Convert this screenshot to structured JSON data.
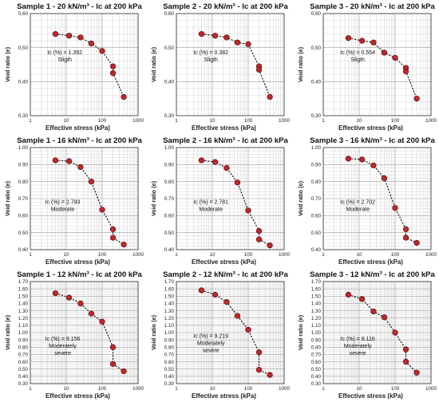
{
  "chart_data": [
    {
      "type": "scatter",
      "title": "Sample 1 - 20 kN/m³ - Ic at 200 kPa",
      "xlabel": "Effective stress (kPa)",
      "ylabel": "Void ratio (e)",
      "xscale": "log",
      "xlim": [
        1,
        1000
      ],
      "ylim": [
        0.3,
        0.6
      ],
      "yticks": [
        "0,30",
        "0,40",
        "0,50",
        "0,60"
      ],
      "xticks": [
        "1",
        "10",
        "100",
        "1000"
      ],
      "grid": true,
      "annotation": [
        "Ic (%) = 1.392",
        "Sligth"
      ],
      "x": [
        5,
        12,
        25,
        50,
        100,
        200,
        200,
        400
      ],
      "y": [
        0.54,
        0.535,
        0.53,
        0.512,
        0.49,
        0.445,
        0.425,
        0.355
      ]
    },
    {
      "type": "scatter",
      "title": "Sample 2 - 20 kN/m³ - Ic at 200 kPa",
      "xlabel": "Effective stress (kPa)",
      "ylabel": "Void ratio (e)",
      "xscale": "log",
      "xlim": [
        1,
        1000
      ],
      "ylim": [
        0.3,
        0.6
      ],
      "yticks": [
        "0,30",
        "0,40",
        "0,50",
        "0,60"
      ],
      "xticks": [
        "1",
        "10",
        "100",
        "1000"
      ],
      "grid": true,
      "annotation": [
        "Ic (%) = 0.382",
        "Sligth"
      ],
      "x": [
        5,
        12,
        25,
        50,
        100,
        200,
        200,
        400
      ],
      "y": [
        0.54,
        0.535,
        0.53,
        0.515,
        0.51,
        0.445,
        0.435,
        0.355
      ]
    },
    {
      "type": "scatter",
      "title": "Sample 3 - 20 kN/m³ - Ic at 200 kPa",
      "xlabel": "Effective stress (kPa)",
      "ylabel": "Void ratio (e)",
      "xscale": "log",
      "xlim": [
        1,
        1000
      ],
      "ylim": [
        0.3,
        0.6
      ],
      "yticks": [
        "0,30",
        "0,40",
        "0,50",
        "0,60"
      ],
      "xticks": [
        "1",
        "10",
        "100",
        "1000"
      ],
      "grid": true,
      "annotation": [
        "Ic (%) = 0.554",
        "Sligth"
      ],
      "x": [
        5,
        12,
        25,
        50,
        100,
        200,
        200,
        400
      ],
      "y": [
        0.528,
        0.52,
        0.515,
        0.485,
        0.47,
        0.44,
        0.43,
        0.35
      ]
    },
    {
      "type": "scatter",
      "title": "Sample 1 - 16 kN/m³ - Ic at 200 kPa",
      "xlabel": "Effective stress (kPa)",
      "ylabel": "Void ratio (e)",
      "xscale": "log",
      "xlim": [
        1,
        1000
      ],
      "ylim": [
        0.4,
        1.0
      ],
      "yticks": [
        "0.40",
        "0.50",
        "0.60",
        "0.70",
        "0.80",
        "0.90",
        "1.00"
      ],
      "xticks": [
        "1",
        "10",
        "100",
        "1000"
      ],
      "grid": true,
      "annotation": [
        "Ic (%) = 2.793",
        "Moderate"
      ],
      "x": [
        5,
        12,
        25,
        50,
        100,
        200,
        200,
        400
      ],
      "y": [
        0.925,
        0.92,
        0.885,
        0.8,
        0.635,
        0.52,
        0.47,
        0.43
      ]
    },
    {
      "type": "scatter",
      "title": "Sample 2 - 16 kN/m³ - Ic at 200 kPa",
      "xlabel": "Effective stress (kPa)",
      "ylabel": "Void ratio (e)",
      "xscale": "log",
      "xlim": [
        1,
        1000
      ],
      "ylim": [
        0.4,
        1.0
      ],
      "yticks": [
        "0.40",
        "0.50",
        "0.60",
        "0.70",
        "0.80",
        "0.90",
        "1.00"
      ],
      "xticks": [
        "1",
        "10",
        "100",
        "1000"
      ],
      "grid": true,
      "annotation": [
        "Ic (%) = 2.781",
        "Moderate"
      ],
      "x": [
        5,
        12,
        25,
        50,
        100,
        200,
        200,
        400
      ],
      "y": [
        0.925,
        0.915,
        0.88,
        0.795,
        0.63,
        0.51,
        0.46,
        0.425
      ]
    },
    {
      "type": "scatter",
      "title": "Sample 3 - 16 kN/m³ - Ic at 200 kPa",
      "xlabel": "Effective stress (kPa)",
      "ylabel": "Void ratio (e)",
      "xscale": "log",
      "xlim": [
        1,
        1000
      ],
      "ylim": [
        0.4,
        1.0
      ],
      "yticks": [
        "0.40",
        "0.50",
        "0.60",
        "0.70",
        "0.80",
        "0.90",
        "1.00"
      ],
      "xticks": [
        "1",
        "10",
        "100",
        "1000"
      ],
      "grid": true,
      "annotation": [
        "Ic (%) = 2.702",
        "Moderate"
      ],
      "x": [
        5,
        12,
        25,
        50,
        100,
        200,
        200,
        400
      ],
      "y": [
        0.935,
        0.93,
        0.895,
        0.82,
        0.645,
        0.52,
        0.47,
        0.44
      ]
    },
    {
      "type": "scatter",
      "title": "Sample 1 - 12 kN/m³ - Ic at 200 kPa",
      "xlabel": "Effective stress (kPa)",
      "ylabel": "Void ratio (e)",
      "xscale": "log",
      "xlim": [
        1,
        1000
      ],
      "ylim": [
        0.3,
        1.7
      ],
      "yticks": [
        "0.30",
        "0.40",
        "0.50",
        "0.60",
        "0.70",
        "0.80",
        "0.90",
        "1.00",
        "1.10",
        "1.20",
        "1.30",
        "1.40",
        "1.50",
        "1.60",
        "1.70"
      ],
      "xticks": [
        "1",
        "10",
        "100",
        "1000"
      ],
      "grid": true,
      "annotation": [
        "Ic (%) = 9.156",
        "Moderately",
        "severe"
      ],
      "x": [
        5,
        12,
        25,
        50,
        100,
        200,
        200,
        400
      ],
      "y": [
        1.54,
        1.48,
        1.4,
        1.26,
        1.15,
        0.8,
        0.57,
        0.47
      ]
    },
    {
      "type": "scatter",
      "title": "Sample 2 - 12 kN/m³ - Ic at 200 kPa",
      "xlabel": "Effective stress (kPa)",
      "ylabel": "Void ratio (e)",
      "xscale": "log",
      "xlim": [
        1,
        1000
      ],
      "ylim": [
        0.3,
        1.7
      ],
      "yticks": [
        "0.30",
        "0.40",
        "0.50",
        "0.60",
        "0.70",
        "0.80",
        "0.90",
        "1.00",
        "1.10",
        "1.20",
        "1.30",
        "1.40",
        "1.50",
        "1.60",
        "1.70"
      ],
      "xticks": [
        "1",
        "10",
        "100",
        "1000"
      ],
      "grid": true,
      "annotation": [
        "Ic (%) = 9.219",
        "Moderately",
        "severe"
      ],
      "x": [
        5,
        12,
        25,
        50,
        100,
        200,
        200,
        400
      ],
      "y": [
        1.58,
        1.52,
        1.42,
        1.23,
        1.04,
        0.73,
        0.49,
        0.42
      ]
    },
    {
      "type": "scatter",
      "title": "Sample 3 - 12 kN/m³ - Ic at 200 kPa",
      "xlabel": "Effective stress (kPa)",
      "ylabel": "Void ratio (e)",
      "xscale": "log",
      "xlim": [
        1,
        1000
      ],
      "ylim": [
        0.3,
        1.7
      ],
      "yticks": [
        "0.30",
        "0.40",
        "0.50",
        "0.60",
        "0.70",
        "0.80",
        "0.90",
        "1.00",
        "1.10",
        "1.20",
        "1.30",
        "1.40",
        "1.50",
        "1.60",
        "1.70"
      ],
      "xticks": [
        "1",
        "10",
        "100",
        "1000"
      ],
      "grid": true,
      "annotation": [
        "Ic (%) = 8.116",
        "Moderately",
        "severe"
      ],
      "x": [
        5,
        12,
        25,
        50,
        100,
        200,
        200,
        400
      ],
      "y": [
        1.52,
        1.46,
        1.29,
        1.21,
        1.0,
        0.77,
        0.6,
        0.45
      ]
    }
  ],
  "colors": {
    "marker_fill": "#c0282c",
    "marker_stroke": "#5a0e0e",
    "curve": "#111111",
    "grid": "#cfcfcf",
    "axis": "#333333"
  }
}
